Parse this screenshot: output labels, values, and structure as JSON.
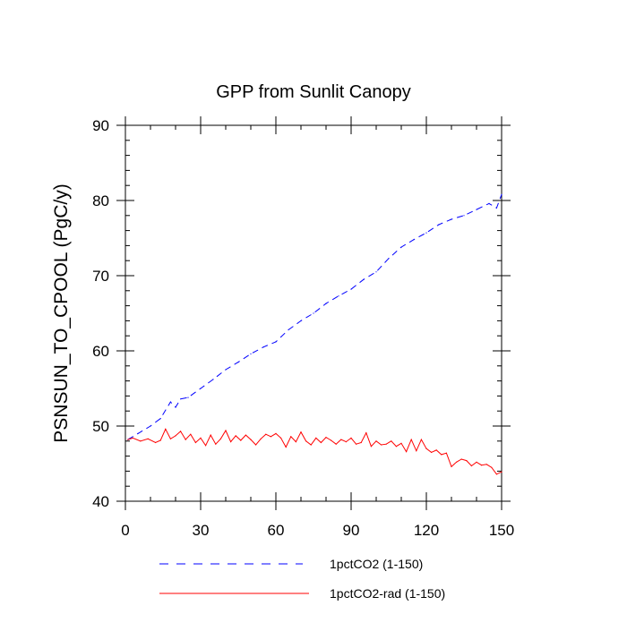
{
  "chart_data": {
    "type": "line",
    "title": "GPP from Sunlit Canopy",
    "xlabel": "",
    "ylabel": "PSNSUN_TO_CPOOL  (PgC/y)",
    "xlim": [
      0,
      150
    ],
    "ylim": [
      40,
      90
    ],
    "x_ticks": [
      "0",
      "30",
      "60",
      "90",
      "120",
      "150"
    ],
    "y_ticks": [
      "40",
      "50",
      "60",
      "70",
      "80",
      "90"
    ],
    "grid": false,
    "legend_position": "bottom",
    "series": [
      {
        "name": "1pctCO2 (1-150)",
        "color": "#0000ff",
        "style": "dashed",
        "x": [
          1,
          5,
          10,
          14,
          18,
          20,
          22,
          25,
          30,
          35,
          40,
          45,
          50,
          55,
          60,
          65,
          70,
          75,
          80,
          85,
          90,
          95,
          100,
          105,
          110,
          115,
          120,
          125,
          130,
          135,
          140,
          145,
          148,
          150
        ],
        "y": [
          48.2,
          49.0,
          50.0,
          51.0,
          53.2,
          52.5,
          53.6,
          53.8,
          55.0,
          56.2,
          57.5,
          58.5,
          59.6,
          60.5,
          61.2,
          62.8,
          64.0,
          65.0,
          66.3,
          67.3,
          68.2,
          69.5,
          70.5,
          72.3,
          73.8,
          74.8,
          75.7,
          76.8,
          77.5,
          78.0,
          78.8,
          79.6,
          79.0,
          80.8
        ]
      },
      {
        "name": "1pctCO2-rad (1-150)",
        "color": "#ff0000",
        "style": "solid",
        "x": [
          1,
          3,
          6,
          9,
          12,
          14,
          16,
          18,
          20,
          22,
          24,
          26,
          28,
          30,
          32,
          34,
          36,
          38,
          40,
          42,
          44,
          46,
          48,
          50,
          52,
          54,
          56,
          58,
          60,
          62,
          64,
          66,
          68,
          70,
          72,
          74,
          76,
          78,
          80,
          82,
          84,
          86,
          88,
          90,
          92,
          94,
          96,
          98,
          100,
          102,
          104,
          106,
          108,
          110,
          112,
          114,
          116,
          118,
          120,
          122,
          124,
          126,
          128,
          130,
          132,
          134,
          136,
          138,
          140,
          142,
          144,
          146,
          148,
          150
        ],
        "y": [
          48.2,
          48.4,
          48.0,
          48.3,
          47.8,
          48.1,
          49.6,
          48.3,
          48.7,
          49.3,
          48.2,
          48.9,
          47.8,
          48.4,
          47.4,
          48.8,
          47.6,
          48.3,
          49.4,
          47.9,
          48.7,
          48.1,
          48.8,
          48.2,
          47.5,
          48.3,
          48.9,
          48.6,
          49.0,
          48.4,
          47.2,
          48.6,
          47.9,
          49.2,
          48.0,
          47.5,
          48.4,
          47.8,
          48.5,
          48.1,
          47.6,
          48.2,
          47.9,
          48.4,
          47.6,
          47.8,
          49.1,
          47.3,
          48.0,
          47.5,
          47.6,
          48.0,
          47.3,
          47.7,
          46.6,
          48.2,
          46.7,
          48.2,
          47.0,
          46.5,
          46.8,
          46.2,
          46.4,
          44.6,
          45.2,
          45.6,
          45.4,
          44.7,
          45.2,
          44.8,
          44.9,
          44.5,
          43.6,
          43.9
        ]
      }
    ]
  }
}
